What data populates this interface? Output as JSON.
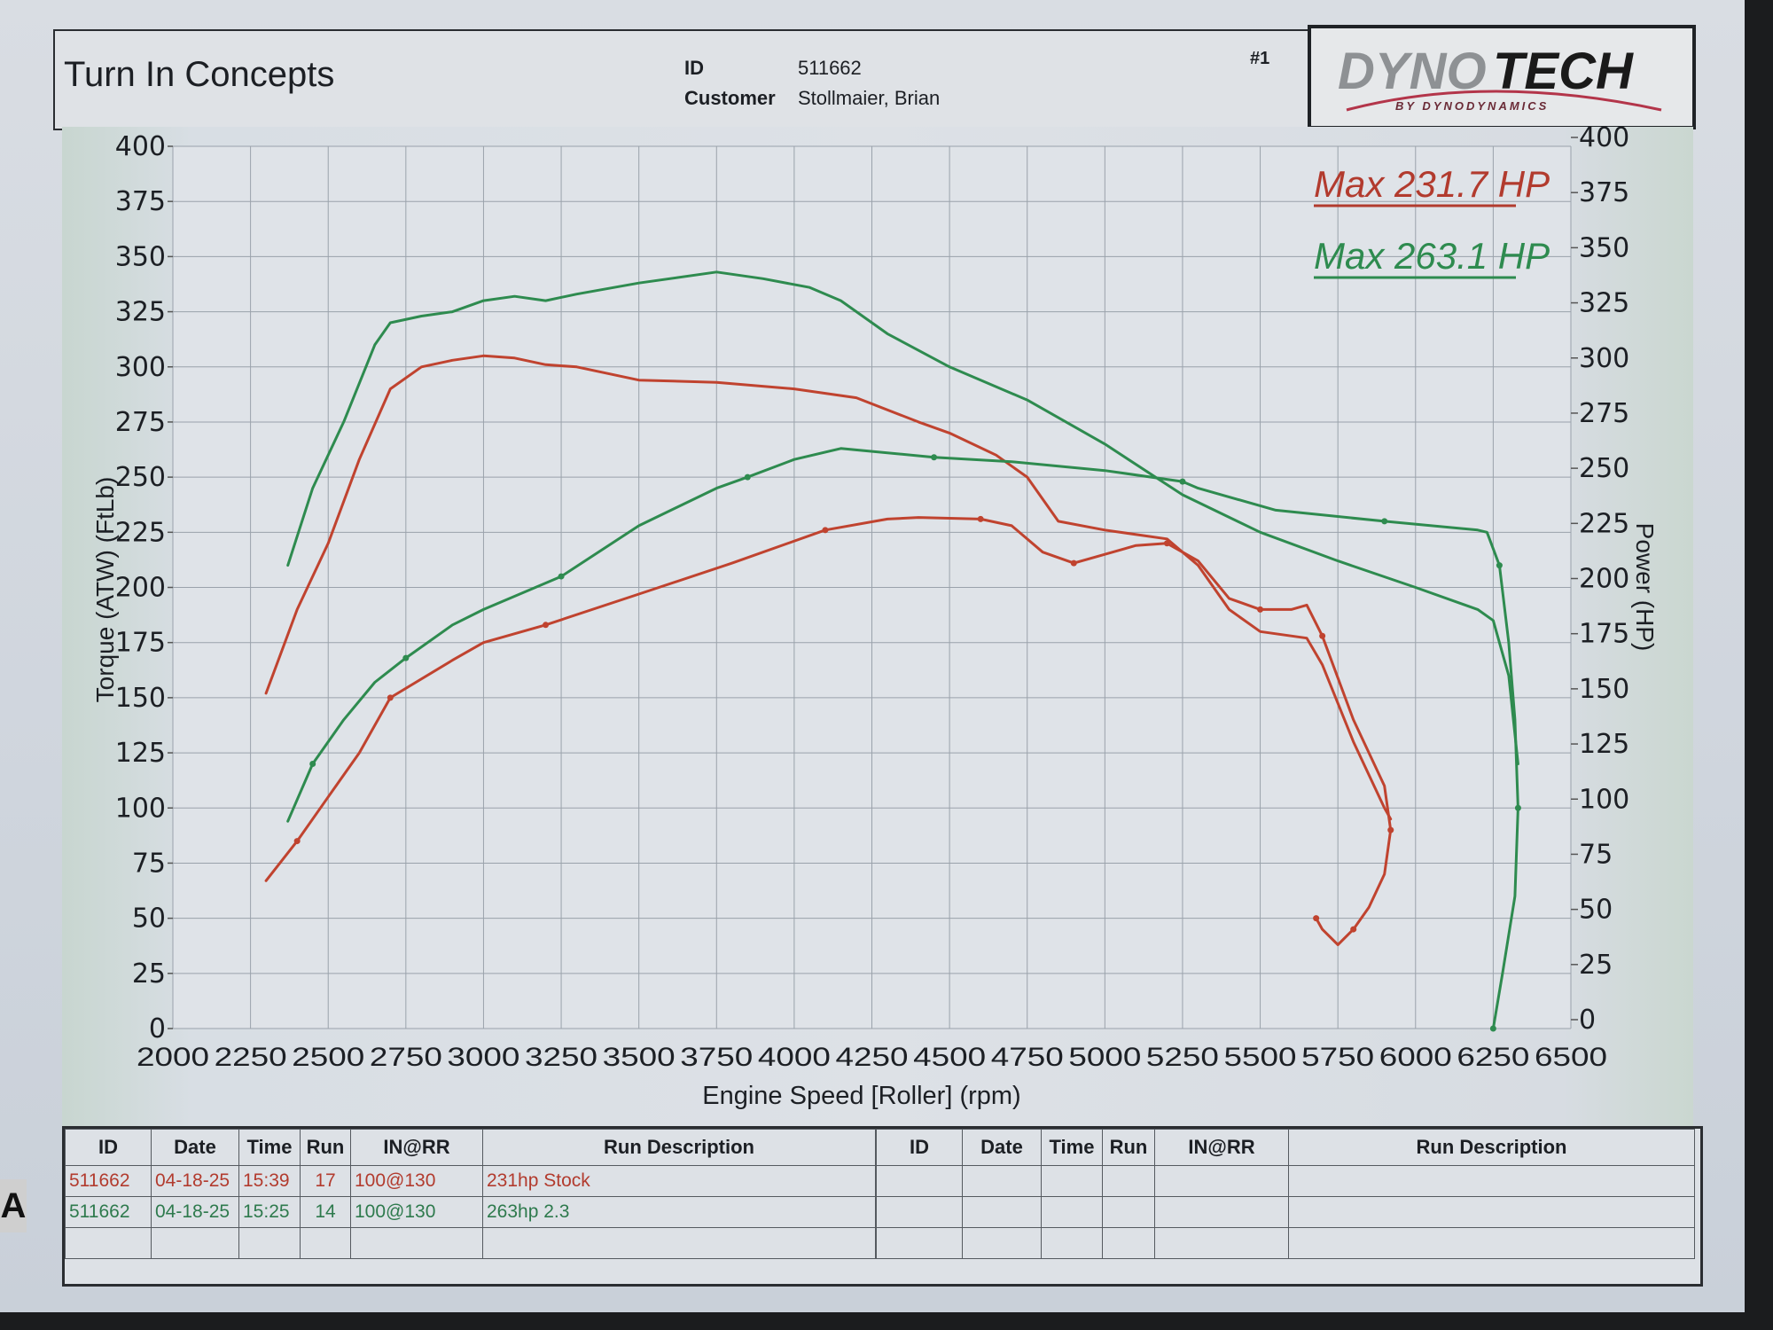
{
  "header": {
    "company": "Turn In Concepts",
    "id_label": "ID",
    "id_value": "511662",
    "customer_label": "Customer",
    "customer_value": "Stollmaier, Brian",
    "run_number": "#1",
    "logo_main": "DYNOTECH",
    "logo_sub": "BY DYNODYNAMICS"
  },
  "legend": {
    "red_label": "Max 231.7 HP",
    "green_label": "Max 263.1 HP"
  },
  "colors": {
    "red": "#c0432f",
    "green": "#2e8b4f",
    "grid": "#9aa2ab",
    "text": "#1c1f24"
  },
  "chart_data": {
    "type": "line",
    "title": "",
    "xlabel": "Engine Speed [Roller] (rpm)",
    "ylabel": "Torque (ATW) (FtLb)",
    "y2label": "Power (HP)",
    "xlim": [
      2000,
      6500
    ],
    "ylim": [
      0,
      400
    ],
    "y2lim": [
      0,
      400
    ],
    "grid": true,
    "x_ticks": [
      "2000",
      "2250",
      "2500",
      "2750",
      "3000",
      "3250",
      "3500",
      "3750",
      "4000",
      "4250",
      "4500",
      "4750",
      "5000",
      "5250",
      "5500",
      "5750",
      "6000",
      "6250",
      "6500"
    ],
    "y_ticks": [
      "0",
      "25",
      "50",
      "75",
      "100",
      "125",
      "150",
      "175",
      "200",
      "225",
      "250",
      "275",
      "300",
      "325",
      "350",
      "375",
      "400"
    ],
    "y2_ticks": [
      "0",
      "25",
      "50",
      "75",
      "100",
      "125",
      "150",
      "175",
      "200",
      "225",
      "250",
      "275",
      "300",
      "325",
      "350",
      "375",
      "400"
    ],
    "series": [
      {
        "name": "Torque - 263hp 2.3 (Run 14)",
        "color": "green",
        "axis": "left",
        "x": [
          2370,
          2450,
          2550,
          2650,
          2700,
          2800,
          2900,
          3000,
          3100,
          3200,
          3300,
          3500,
          3750,
          3900,
          4050,
          4150,
          4300,
          4500,
          4750,
          5000,
          5250,
          5500,
          5750,
          6000,
          6200,
          6250,
          6300,
          6330
        ],
        "values": [
          210,
          245,
          275,
          310,
          320,
          323,
          325,
          330,
          332,
          330,
          333,
          338,
          343,
          340,
          336,
          330,
          315,
          300,
          285,
          265,
          242,
          225,
          212,
          200,
          190,
          185,
          160,
          120
        ]
      },
      {
        "name": "Torque - 231hp Stock (Run 17)",
        "color": "red",
        "axis": "left",
        "x": [
          2300,
          2400,
          2500,
          2600,
          2700,
          2800,
          2900,
          3000,
          3100,
          3200,
          3300,
          3500,
          3750,
          4000,
          4200,
          4400,
          4500,
          4650,
          4750,
          4850,
          5000,
          5200,
          5300,
          5400,
          5500,
          5650,
          5700,
          5800,
          5900,
          5920
        ],
        "values": [
          152,
          190,
          220,
          258,
          290,
          300,
          303,
          305,
          304,
          301,
          300,
          294,
          293,
          290,
          286,
          275,
          270,
          260,
          250,
          230,
          226,
          222,
          210,
          190,
          180,
          177,
          165,
          130,
          100,
          95
        ]
      },
      {
        "name": "Power - 263hp 2.3 (Run 14)",
        "color": "green",
        "axis": "right",
        "x": [
          2370,
          2450,
          2550,
          2650,
          2750,
          2900,
          3000,
          3250,
          3500,
          3750,
          3850,
          4000,
          4150,
          4450,
          4700,
          5000,
          5250,
          5300,
          5550,
          5900,
          6200,
          6230,
          6270,
          6300,
          6320,
          6330,
          6320,
          6280,
          6250
        ],
        "values": [
          94,
          120,
          140,
          157,
          168,
          183,
          190,
          205,
          228,
          245,
          250,
          258,
          263,
          259,
          257,
          253,
          248,
          245,
          235,
          230,
          226,
          225,
          210,
          175,
          140,
          100,
          60,
          25,
          0
        ]
      },
      {
        "name": "Power - 231hp Stock (Run 17)",
        "color": "red",
        "axis": "right",
        "x": [
          2300,
          2400,
          2500,
          2600,
          2700,
          2900,
          3000,
          3200,
          3500,
          3800,
          4100,
          4300,
          4400,
          4600,
          4700,
          4800,
          4900,
          5000,
          5100,
          5200,
          5300,
          5400,
          5500,
          5600,
          5650,
          5700,
          5800,
          5900,
          5920,
          5900,
          5850,
          5800,
          5750,
          5700,
          5680
        ],
        "values": [
          67,
          85,
          105,
          125,
          150,
          167,
          175,
          183,
          197,
          211,
          226,
          231,
          231.7,
          231,
          228,
          216,
          211,
          215,
          219,
          220,
          212,
          195,
          190,
          190,
          192,
          178,
          140,
          110,
          90,
          70,
          55,
          45,
          38,
          45,
          50
        ]
      }
    ],
    "annotations": [
      "Max 231.7 HP",
      "Max 263.1 HP"
    ]
  },
  "table": {
    "headers": [
      "ID",
      "Date",
      "Time",
      "Run",
      "IN@RR",
      "Run Description"
    ],
    "left_rows": [
      {
        "id": "511662",
        "date": "04-18-25",
        "time": "15:39",
        "run": "17",
        "inrr": "100@130",
        "desc": "231hp Stock",
        "color": "red"
      },
      {
        "id": "511662",
        "date": "04-18-25",
        "time": "15:25",
        "run": "14",
        "inrr": "100@130",
        "desc": "263hp 2.3",
        "color": "green"
      },
      {
        "id": "",
        "date": "",
        "time": "",
        "run": "",
        "inrr": "",
        "desc": "",
        "color": ""
      }
    ],
    "right_rows": [
      {
        "id": "",
        "date": "",
        "time": "",
        "run": "",
        "inrr": "",
        "desc": ""
      },
      {
        "id": "",
        "date": "",
        "time": "",
        "run": "",
        "inrr": "",
        "desc": ""
      },
      {
        "id": "",
        "date": "",
        "time": "",
        "run": "",
        "inrr": "",
        "desc": ""
      }
    ]
  },
  "edge_letter": "A"
}
